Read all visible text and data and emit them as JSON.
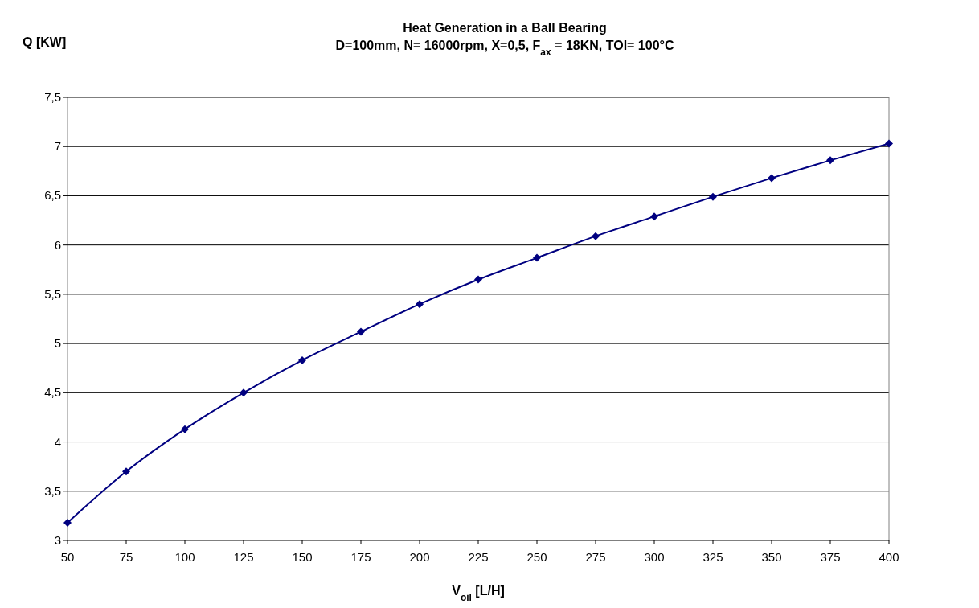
{
  "chart_data": {
    "type": "line",
    "title": "Heat Generation in a Ball Bearing",
    "subtitle": "D=100mm, N= 16000rpm, X=0,5, F$_{ax}$= 18KN, TOI= 100°C",
    "xlabel": "V$_{oil}$ [L/H]",
    "ylabel": "Q [KW]",
    "x": [
      50,
      75,
      100,
      125,
      150,
      175,
      200,
      225,
      250,
      275,
      300,
      325,
      350,
      375,
      400
    ],
    "series": [
      {
        "color": "#000080",
        "values": [
          3.18,
          3.7,
          4.13,
          4.5,
          4.83,
          5.12,
          5.4,
          5.65,
          5.87,
          6.09,
          6.29,
          6.49,
          6.68,
          6.86,
          7.03
        ]
      }
    ],
    "xlim": [
      50,
      400
    ],
    "xticks": [
      50,
      75,
      100,
      125,
      150,
      175,
      200,
      225,
      250,
      275,
      300,
      325,
      350,
      375,
      400
    ],
    "ylim": [
      3,
      7.5
    ],
    "yticks": [
      3,
      {
        "value": 3.5,
        "label": "3,5"
      },
      4,
      {
        "value": 4.5,
        "label": "4,5"
      },
      5,
      {
        "value": 5.5,
        "label": "5,5"
      },
      6,
      {
        "value": 6.5,
        "label": "6,5"
      },
      7,
      {
        "value": 7.5,
        "label": "7,5"
      }
    ],
    "grid": "y",
    "marker": "diamond",
    "line_style": "solid"
  }
}
